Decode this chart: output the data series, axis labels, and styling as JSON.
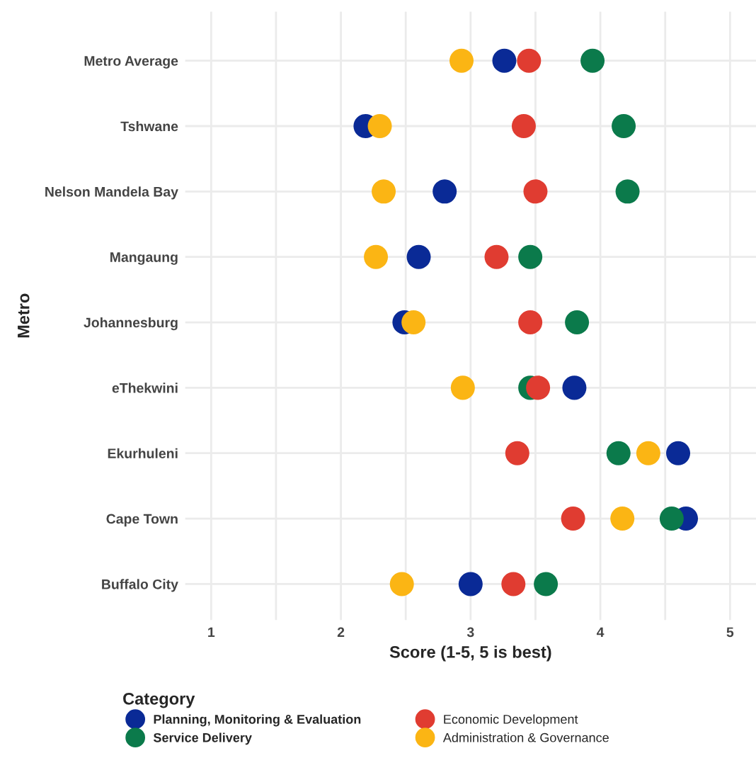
{
  "chart_data": {
    "type": "scatter",
    "xlabel": "Score (1-5, 5 is best)",
    "ylabel": "Metro",
    "legend_title": "Category",
    "categories": [
      "Metro Average",
      "Tshwane",
      "Nelson Mandela Bay",
      "Mangaung",
      "Johannesburg",
      "eThekwini",
      "Ekurhuleni",
      "Cape Town",
      "Buffalo City"
    ],
    "series": [
      {
        "name": "Planning, Monitoring & Evaluation",
        "color": "#0a2a96",
        "values": [
          3.26,
          2.19,
          2.8,
          2.6,
          2.49,
          3.8,
          4.6,
          4.66,
          3.0
        ]
      },
      {
        "name": "Service Delivery",
        "color": "#0b7a4b",
        "values": [
          3.94,
          4.18,
          4.21,
          3.46,
          3.82,
          3.46,
          4.14,
          4.55,
          3.58
        ]
      },
      {
        "name": "Economic Development",
        "color": "#e03c31",
        "values": [
          3.45,
          3.41,
          3.5,
          3.2,
          3.46,
          3.52,
          3.36,
          3.79,
          3.33
        ]
      },
      {
        "name": "Administration & Governance",
        "color": "#fbb514",
        "values": [
          2.93,
          2.3,
          2.33,
          2.27,
          2.56,
          2.94,
          4.37,
          4.17,
          2.47
        ]
      }
    ],
    "orientation": "horizontal",
    "xlim": [
      0.8,
      5.2
    ],
    "xticks": [
      1,
      {
        "value": 1.5,
        "label": null
      },
      2,
      {
        "value": 2.5,
        "label": null
      },
      3,
      {
        "value": 3.5,
        "label": null
      },
      4,
      {
        "value": 4.5,
        "label": null
      },
      5
    ],
    "grid": true,
    "legend": "bottom",
    "marker": "circle"
  }
}
